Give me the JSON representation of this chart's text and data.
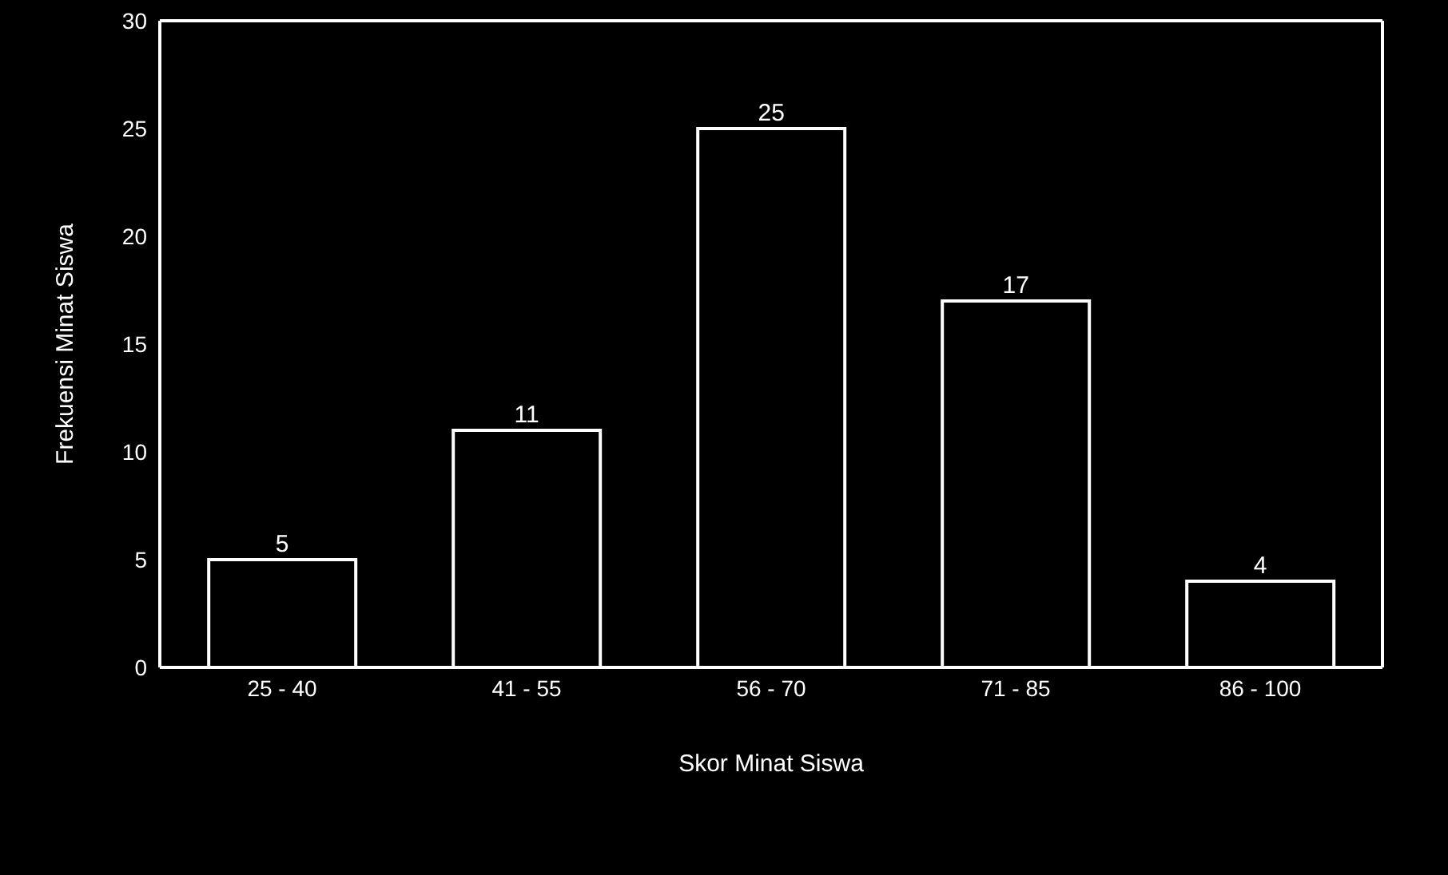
{
  "chart_data": {
    "type": "bar",
    "xlabel": "Skor Minat Siswa",
    "ylabel": "Frekuensi Minat Siswa",
    "categories": [
      "25 - 40",
      "41 - 55",
      "56 - 70",
      "71 - 85",
      "86 - 100"
    ],
    "values": [
      5,
      11,
      25,
      17,
      4
    ],
    "color": "#000000",
    "ylim": [
      0,
      30
    ],
    "yticks": [
      0,
      5,
      10,
      15,
      20,
      25,
      30
    ],
    "data_labels": true,
    "grid": false
  }
}
